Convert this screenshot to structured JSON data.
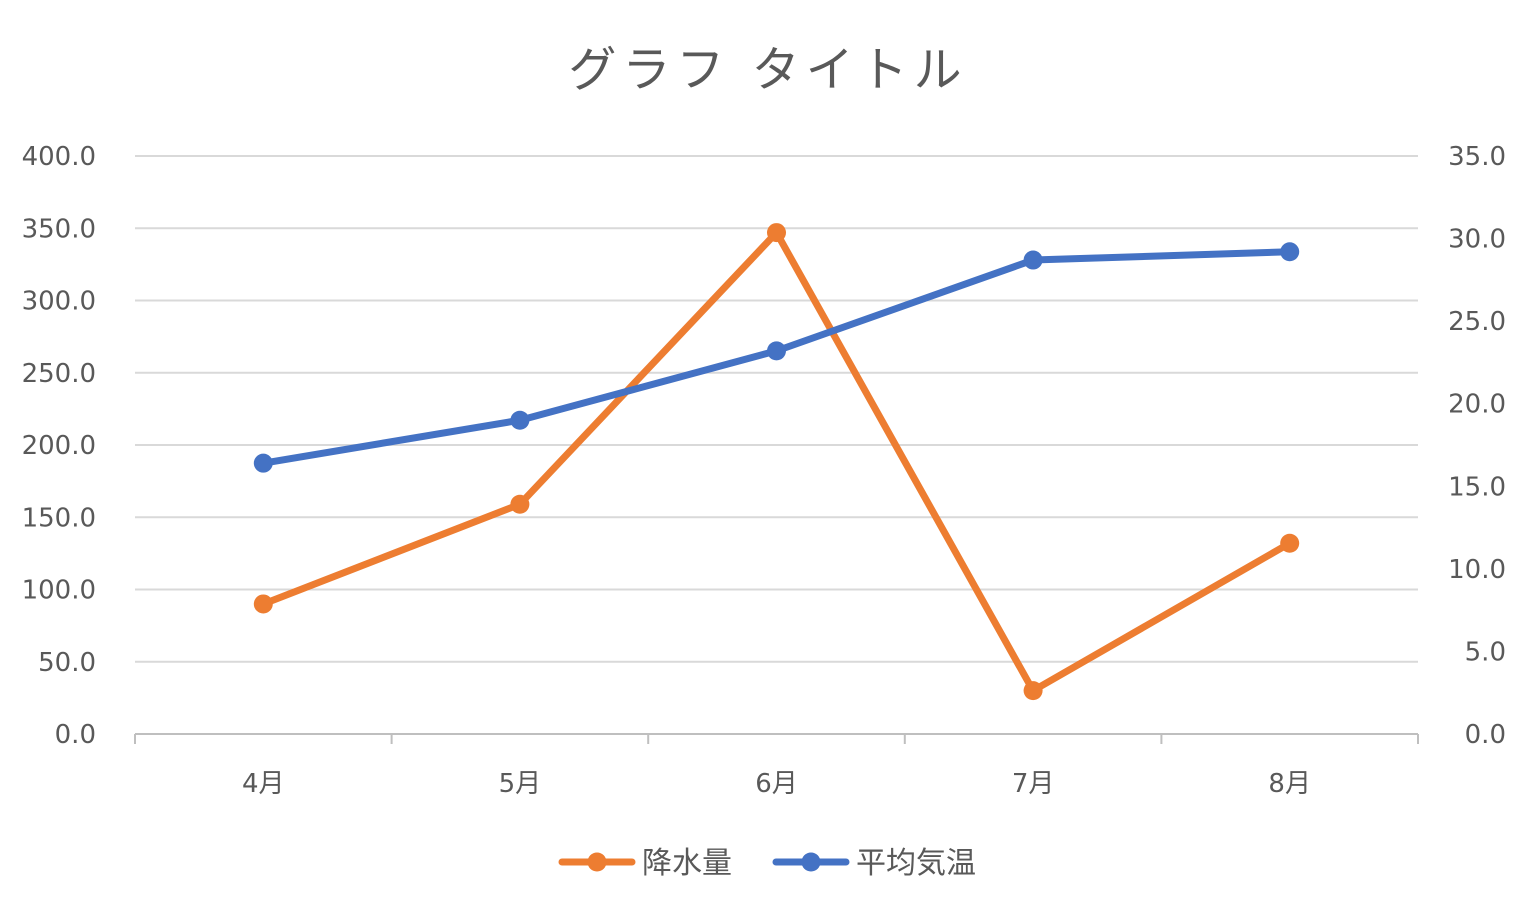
{
  "chart_data": {
    "type": "line",
    "title": "グラフ タイトル",
    "categories": [
      "4月",
      "5月",
      "6月",
      "7月",
      "8月"
    ],
    "series": [
      {
        "name": "降水量",
        "axis": "left",
        "color": "#ED7D31",
        "values": [
          90.0,
          159.0,
          347.0,
          30.0,
          132.0
        ]
      },
      {
        "name": "平均気温",
        "axis": "right",
        "color": "#4472C4",
        "values": [
          16.4,
          19.0,
          23.2,
          28.7,
          29.2
        ]
      }
    ],
    "y_left": {
      "ylim": [
        0,
        400
      ],
      "ticks": [
        "0.0",
        "50.0",
        "100.0",
        "150.0",
        "200.0",
        "250.0",
        "300.0",
        "350.0",
        "400.0"
      ]
    },
    "y_right": {
      "ylim": [
        0,
        35
      ],
      "ticks": [
        "0.0",
        "5.0",
        "10.0",
        "15.0",
        "20.0",
        "25.0",
        "30.0",
        "35.0"
      ]
    },
    "grid": true,
    "gridline_color": "#D9D9D9",
    "legend_position": "bottom"
  }
}
